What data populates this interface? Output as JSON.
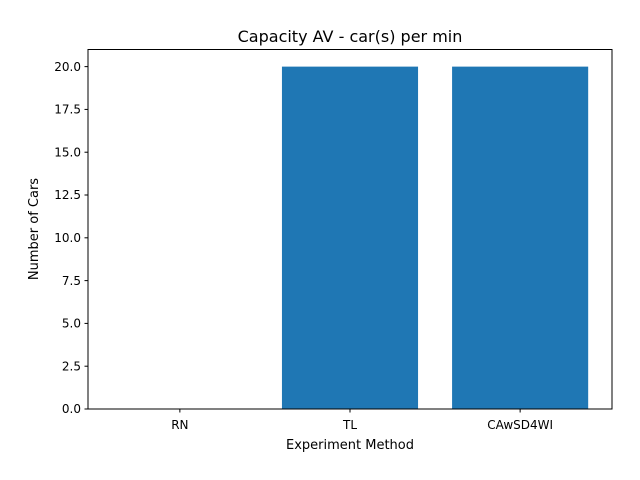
{
  "chart_data": {
    "type": "bar",
    "title": "Capacity AV - car(s) per min",
    "xlabel": "Experiment Method",
    "ylabel": "Number of Cars",
    "categories": [
      "RN",
      "TL",
      "CAwSD4WI"
    ],
    "values": [
      0,
      20,
      20
    ],
    "ylim": [
      0,
      21
    ],
    "yticks": [
      0,
      2.5,
      5,
      7.5,
      10,
      12.5,
      15,
      17.5,
      20
    ],
    "ytick_labels": [
      "0.0",
      "2.5",
      "5.0",
      "7.5",
      "10.0",
      "12.5",
      "15.0",
      "17.5",
      "20.0"
    ],
    "bar_color": "#1f77b4",
    "grid": false
  }
}
